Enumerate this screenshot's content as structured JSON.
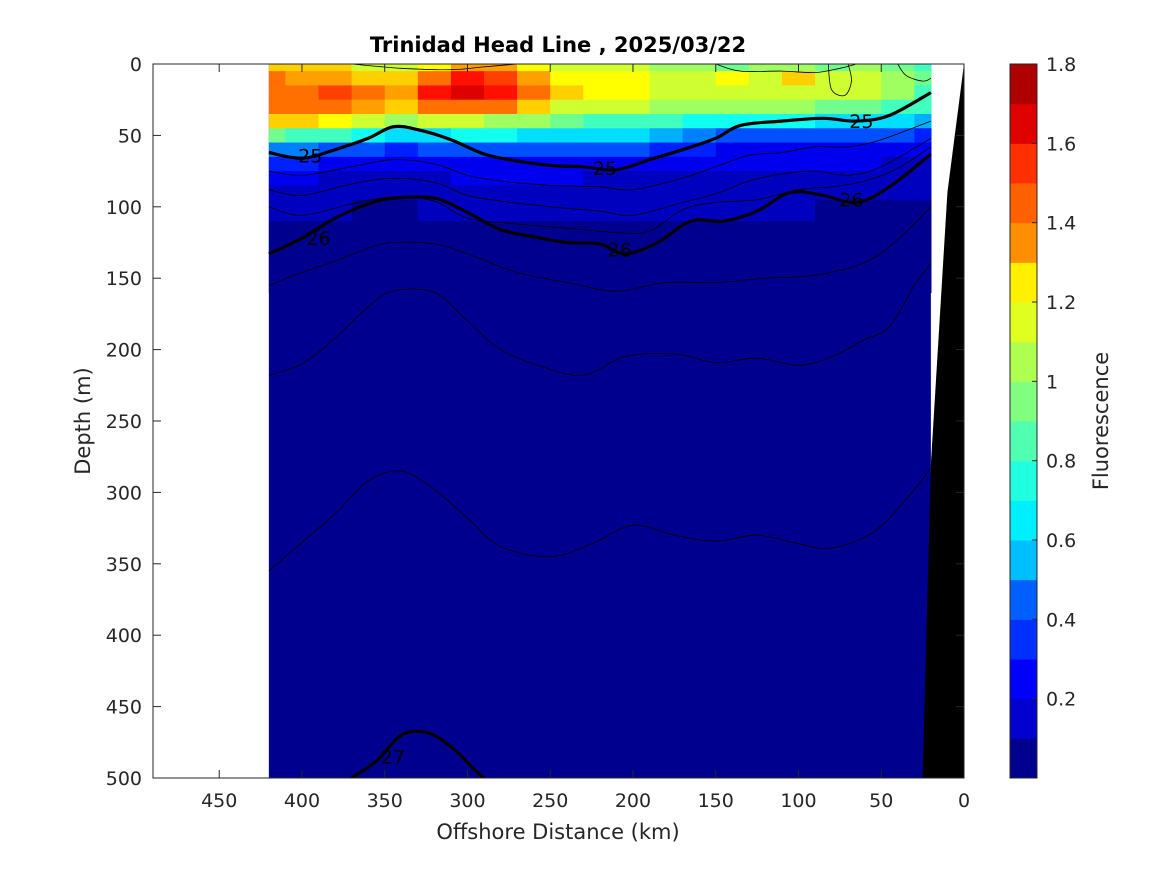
{
  "chart_data": {
    "type": "heatmap",
    "title": "Trinidad Head Line , 2025/03/22",
    "xlabel": "Offshore Distance (km)",
    "ylabel": "Depth (m)",
    "colorbar_label": "Fluorescence",
    "xlim": [
      490,
      0
    ],
    "ylim": [
      0,
      500
    ],
    "x_reversed": true,
    "y_reversed": true,
    "xticks": [
      450,
      400,
      350,
      300,
      250,
      200,
      150,
      100,
      50,
      0
    ],
    "xtick_labels": [
      "450",
      "400",
      "350",
      "300",
      "250",
      "200",
      "150",
      "100",
      "50",
      "0"
    ],
    "yticks": [
      0,
      50,
      100,
      150,
      200,
      250,
      300,
      350,
      400,
      450,
      500
    ],
    "ytick_labels": [
      "0",
      "50",
      "100",
      "150",
      "200",
      "250",
      "300",
      "350",
      "400",
      "450",
      "500"
    ],
    "colorbar": {
      "range": [
        0,
        1.8
      ],
      "ticks": [
        0.2,
        0.4,
        0.6,
        0.8,
        1,
        1.2,
        1.4,
        1.6,
        1.8
      ],
      "tick_labels": [
        "0.2",
        "0.4",
        "0.6",
        "0.8",
        "1",
        "1.2",
        "1.4",
        "1.6",
        "1.8"
      ],
      "levels": [
        0,
        0.1,
        0.2,
        0.3,
        0.4,
        0.5,
        0.6,
        0.7,
        0.8,
        0.9,
        1.0,
        1.1,
        1.2,
        1.3,
        1.4,
        1.5,
        1.6,
        1.7,
        1.8
      ],
      "colors": [
        "#00008f",
        "#0000bf",
        "#0000ef",
        "#0020ff",
        "#0050ff",
        "#0080ff",
        "#00b0ff",
        "#00dfff",
        "#10ffef",
        "#40ffbf",
        "#70ff8f",
        "#9fff60",
        "#cfff30",
        "#ffff00",
        "#ffcf00",
        "#ff9f00",
        "#ff7000",
        "#ff4000",
        "#ff1000",
        "#df0000",
        "#af0000"
      ]
    },
    "data_extent_km": [
      420,
      20
    ],
    "fluorescence_field": {
      "x_km": [
        420,
        400,
        380,
        360,
        340,
        320,
        300,
        280,
        260,
        240,
        220,
        200,
        180,
        160,
        140,
        120,
        100,
        80,
        60,
        40,
        20
      ],
      "depth_m": [
        0,
        10,
        20,
        30,
        40,
        50,
        60,
        70,
        80,
        90,
        100,
        120,
        150
      ],
      "values": [
        [
          1.25,
          1.25,
          1.2,
          1.05,
          1.05,
          1.15,
          1.3,
          1.3,
          1.15,
          1.1,
          1.05,
          1.1,
          1.0,
          0.95,
          0.9,
          0.95,
          0.95,
          0.9,
          0.95,
          0.9,
          0.85
        ],
        [
          1.4,
          1.35,
          1.35,
          1.25,
          1.2,
          1.4,
          1.55,
          1.5,
          1.35,
          1.15,
          1.15,
          1.15,
          1.1,
          1.1,
          1.15,
          1.1,
          1.2,
          1.1,
          1.1,
          0.95,
          0.9
        ],
        [
          1.45,
          1.45,
          1.5,
          1.4,
          1.35,
          1.55,
          1.7,
          1.55,
          1.4,
          1.2,
          1.15,
          1.15,
          1.1,
          1.05,
          1.1,
          1.1,
          1.1,
          1.1,
          1.05,
          0.95,
          0.85
        ],
        [
          1.4,
          1.4,
          1.45,
          1.35,
          1.25,
          1.4,
          1.45,
          1.4,
          1.25,
          1.1,
          1.1,
          1.05,
          1.0,
          1.0,
          1.0,
          0.95,
          0.95,
          0.9,
          0.9,
          0.85,
          0.8
        ],
        [
          1.25,
          1.2,
          1.15,
          1.05,
          1.0,
          1.05,
          1.05,
          1.0,
          0.95,
          0.9,
          0.85,
          0.85,
          0.8,
          0.75,
          0.7,
          0.7,
          0.7,
          0.65,
          0.65,
          0.6,
          0.55
        ],
        [
          0.9,
          0.85,
          0.8,
          0.7,
          0.6,
          0.65,
          0.7,
          0.7,
          0.65,
          0.65,
          0.6,
          0.6,
          0.55,
          0.5,
          0.4,
          0.4,
          0.4,
          0.4,
          0.35,
          0.35,
          0.3
        ],
        [
          0.5,
          0.45,
          0.4,
          0.35,
          0.3,
          0.35,
          0.4,
          0.4,
          0.4,
          0.4,
          0.35,
          0.35,
          0.3,
          0.3,
          0.25,
          0.25,
          0.25,
          0.25,
          0.25,
          0.2,
          0.2
        ],
        [
          0.3,
          0.28,
          0.25,
          0.22,
          0.2,
          0.22,
          0.25,
          0.25,
          0.25,
          0.25,
          0.22,
          0.22,
          0.2,
          0.2,
          0.18,
          0.18,
          0.18,
          0.18,
          0.18,
          0.15,
          0.15
        ],
        [
          0.2,
          0.18,
          0.16,
          0.15,
          0.15,
          0.16,
          0.18,
          0.18,
          0.18,
          0.18,
          0.17,
          0.17,
          0.16,
          0.15,
          0.15,
          0.14,
          0.14,
          0.14,
          0.14,
          0.12,
          0.12
        ],
        [
          0.14,
          0.13,
          0.12,
          0.11,
          0.11,
          0.12,
          0.13,
          0.14,
          0.14,
          0.14,
          0.13,
          0.13,
          0.12,
          0.12,
          0.11,
          0.11,
          0.11,
          0.11,
          0.11,
          0.1,
          0.1
        ],
        [
          0.1,
          0.1,
          0.09,
          0.08,
          0.08,
          0.09,
          0.1,
          0.11,
          0.11,
          0.11,
          0.1,
          0.1,
          0.1,
          0.09,
          0.09,
          0.09,
          0.09,
          0.08,
          0.08,
          0.08,
          0.08
        ],
        [
          0.06,
          0.06,
          0.05,
          0.05,
          0.05,
          0.05,
          0.06,
          0.06,
          0.06,
          0.06,
          0.06,
          0.06,
          0.06,
          0.05,
          0.05,
          0.05,
          0.05,
          0.05,
          0.05,
          0.05,
          0.05
        ],
        [
          0.04,
          0.04,
          0.04,
          0.04,
          0.04,
          0.04,
          0.04,
          0.04,
          0.04,
          0.04,
          0.04,
          0.04,
          0.04,
          0.04,
          0.04,
          0.04,
          0.04,
          0.04,
          0.04,
          0.04,
          0.04
        ]
      ]
    },
    "density_contours": [
      {
        "level": 25,
        "bold": true,
        "label": "25",
        "points": [
          [
            420,
            62
          ],
          [
            400,
            66
          ],
          [
            380,
            60
          ],
          [
            360,
            52
          ],
          [
            345,
            44
          ],
          [
            330,
            46
          ],
          [
            310,
            53
          ],
          [
            290,
            63
          ],
          [
            270,
            68
          ],
          [
            250,
            71
          ],
          [
            230,
            72
          ],
          [
            210,
            74
          ],
          [
            190,
            67
          ],
          [
            170,
            60
          ],
          [
            150,
            52
          ],
          [
            135,
            43
          ],
          [
            110,
            40
          ],
          [
            85,
            38
          ],
          [
            65,
            40
          ],
          [
            45,
            36
          ],
          [
            20,
            20
          ]
        ]
      },
      {
        "level": 26,
        "bold": true,
        "label": "26",
        "points": [
          [
            420,
            133
          ],
          [
            400,
            122
          ],
          [
            380,
            108
          ],
          [
            360,
            98
          ],
          [
            345,
            94
          ],
          [
            320,
            94
          ],
          [
            300,
            104
          ],
          [
            280,
            116
          ],
          [
            260,
            121
          ],
          [
            240,
            125
          ],
          [
            220,
            126
          ],
          [
            205,
            133
          ],
          [
            185,
            125
          ],
          [
            165,
            110
          ],
          [
            145,
            110
          ],
          [
            125,
            103
          ],
          [
            105,
            90
          ],
          [
            85,
            92
          ],
          [
            65,
            97
          ],
          [
            45,
            86
          ],
          [
            20,
            63
          ]
        ]
      },
      {
        "level": 27,
        "bold": true,
        "label": "27",
        "points": [
          [
            370,
            500
          ],
          [
            355,
            488
          ],
          [
            340,
            470
          ],
          [
            325,
            468
          ],
          [
            310,
            478
          ],
          [
            295,
            495
          ],
          [
            290,
            500
          ]
        ]
      },
      {
        "level": null,
        "bold": false,
        "points": [
          [
            420,
            155
          ],
          [
            400,
            146
          ],
          [
            380,
            138
          ],
          [
            360,
            129
          ],
          [
            345,
            125
          ],
          [
            320,
            126
          ],
          [
            300,
            133
          ],
          [
            270,
            146
          ],
          [
            240,
            153
          ],
          [
            210,
            159
          ],
          [
            180,
            153
          ],
          [
            150,
            153
          ],
          [
            120,
            150
          ],
          [
            90,
            148
          ],
          [
            60,
            139
          ],
          [
            40,
            123
          ],
          [
            20,
            100
          ]
        ]
      },
      {
        "level": null,
        "bold": false,
        "points": [
          [
            420,
            218
          ],
          [
            400,
            210
          ],
          [
            380,
            192
          ],
          [
            360,
            170
          ],
          [
            345,
            159
          ],
          [
            320,
            160
          ],
          [
            300,
            180
          ],
          [
            280,
            200
          ],
          [
            255,
            212
          ],
          [
            230,
            218
          ],
          [
            205,
            205
          ],
          [
            175,
            203
          ],
          [
            150,
            209
          ],
          [
            125,
            206
          ],
          [
            100,
            211
          ],
          [
            80,
            205
          ],
          [
            60,
            193
          ],
          [
            45,
            184
          ],
          [
            30,
            155
          ],
          [
            20,
            140
          ]
        ]
      },
      {
        "level": null,
        "bold": false,
        "points": [
          [
            420,
            355
          ],
          [
            400,
            335
          ],
          [
            380,
            315
          ],
          [
            360,
            292
          ],
          [
            340,
            285
          ],
          [
            320,
            298
          ],
          [
            300,
            318
          ],
          [
            280,
            338
          ],
          [
            250,
            345
          ],
          [
            225,
            336
          ],
          [
            200,
            323
          ],
          [
            175,
            330
          ],
          [
            150,
            334
          ],
          [
            125,
            330
          ],
          [
            100,
            336
          ],
          [
            80,
            339
          ],
          [
            55,
            328
          ],
          [
            35,
            305
          ],
          [
            20,
            283
          ]
        ]
      },
      {
        "level": null,
        "bold": false,
        "points": [
          [
            420,
            75
          ],
          [
            400,
            78
          ],
          [
            370,
            72
          ],
          [
            345,
            67
          ],
          [
            320,
            70
          ],
          [
            300,
            78
          ],
          [
            280,
            82
          ],
          [
            250,
            85
          ],
          [
            220,
            86
          ],
          [
            200,
            88
          ],
          [
            170,
            80
          ],
          [
            150,
            72
          ],
          [
            130,
            64
          ],
          [
            110,
            62
          ],
          [
            90,
            58
          ],
          [
            70,
            58
          ],
          [
            50,
            53
          ],
          [
            20,
            40
          ]
        ]
      },
      {
        "level": null,
        "bold": false,
        "points": [
          [
            420,
            88
          ],
          [
            400,
            92
          ],
          [
            370,
            84
          ],
          [
            345,
            80
          ],
          [
            320,
            83
          ],
          [
            300,
            92
          ],
          [
            280,
            96
          ],
          [
            250,
            100
          ],
          [
            220,
            103
          ],
          [
            200,
            106
          ],
          [
            170,
            97
          ],
          [
            150,
            91
          ],
          [
            130,
            82
          ],
          [
            110,
            77
          ],
          [
            90,
            75
          ],
          [
            70,
            78
          ],
          [
            50,
            72
          ],
          [
            20,
            52
          ]
        ]
      },
      {
        "level": null,
        "bold": false,
        "points": [
          [
            420,
            100
          ],
          [
            400,
            106
          ],
          [
            370,
            98
          ],
          [
            345,
            93
          ],
          [
            320,
            96
          ],
          [
            300,
            108
          ],
          [
            270,
            112
          ],
          [
            240,
            115
          ],
          [
            210,
            118
          ],
          [
            190,
            117
          ],
          [
            170,
            102
          ],
          [
            150,
            97
          ],
          [
            125,
            95
          ],
          [
            100,
            88
          ],
          [
            80,
            86
          ],
          [
            60,
            82
          ],
          [
            40,
            73
          ],
          [
            20,
            58
          ]
        ]
      },
      {
        "level": null,
        "bold": false,
        "points": [
          [
            150,
            0
          ],
          [
            135,
            5
          ],
          [
            110,
            5
          ],
          [
            90,
            6
          ],
          [
            75,
            3
          ],
          [
            65,
            0
          ]
        ]
      },
      {
        "level": null,
        "bold": false,
        "points": [
          [
            82,
            0
          ],
          [
            80,
            18
          ],
          [
            72,
            22
          ],
          [
            68,
            12
          ],
          [
            70,
            0
          ]
        ]
      },
      {
        "level": null,
        "bold": false,
        "points": [
          [
            40,
            0
          ],
          [
            35,
            8
          ],
          [
            25,
            12
          ],
          [
            20,
            10
          ]
        ]
      },
      {
        "level": null,
        "bold": false,
        "points": [
          [
            370,
            0
          ],
          [
            340,
            3
          ],
          [
            310,
            4
          ],
          [
            290,
            2
          ],
          [
            270,
            0
          ]
        ]
      }
    ],
    "bathymetry_polygon_km_m": [
      [
        0,
        0
      ],
      [
        10,
        90
      ],
      [
        20,
        280
      ],
      [
        25,
        500
      ],
      [
        0,
        500
      ]
    ]
  }
}
